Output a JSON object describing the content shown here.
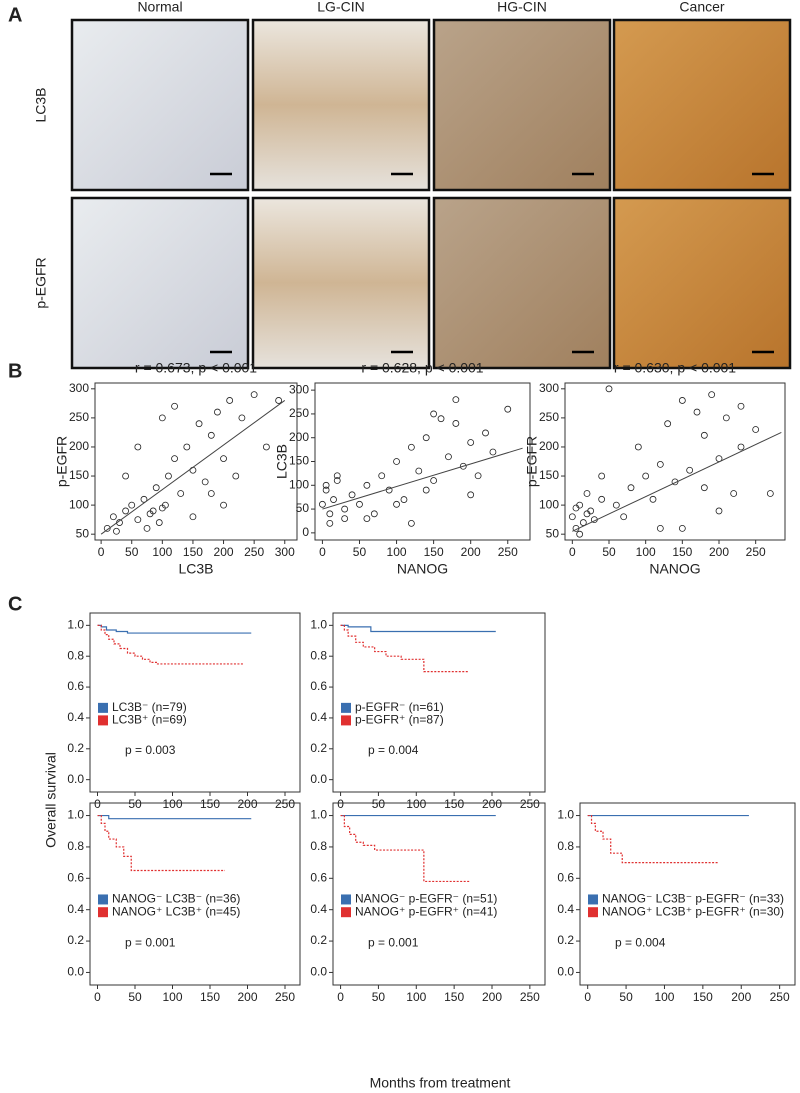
{
  "figure": {
    "panel_labels": [
      "A",
      "B",
      "C"
    ],
    "columns": [
      "Normal",
      "LG-CIN",
      "HG-CIN",
      "Cancer"
    ],
    "rows": [
      "LC3B",
      "p-EGFR"
    ],
    "km_ylabel": "Overall survival",
    "km_xlabel": "Months from treatment"
  },
  "chart_data": [
    {
      "type": "scatter",
      "title": "r = 0.673, p < 0.001",
      "x_label": "LC3B",
      "y_label": "p-EGFR",
      "x": [
        10,
        20,
        30,
        40,
        50,
        60,
        70,
        80,
        90,
        100,
        110,
        120,
        130,
        140,
        150,
        160,
        170,
        180,
        190,
        200,
        210,
        220,
        230,
        250,
        270,
        290,
        40,
        60,
        100,
        150,
        200,
        25,
        75,
        120,
        180,
        85,
        95,
        105
      ],
      "values": [
        60,
        80,
        70,
        90,
        100,
        75,
        110,
        85,
        130,
        95,
        150,
        180,
        120,
        200,
        160,
        240,
        140,
        220,
        260,
        180,
        280,
        150,
        250,
        290,
        200,
        280,
        150,
        200,
        250,
        80,
        100,
        55,
        60,
        270,
        120,
        90,
        70,
        100
      ],
      "fit": {
        "x": [
          0,
          300
        ],
        "values": [
          50,
          280
        ]
      },
      "xlim": [
        -10,
        320
      ],
      "ylim": [
        40,
        310
      ],
      "xticks": [
        0,
        50,
        100,
        150,
        200,
        250,
        300
      ],
      "yticks": [
        50,
        100,
        150,
        200,
        250,
        300
      ],
      "color": "#222"
    },
    {
      "type": "scatter",
      "title": "r = 0.628,  p < 0.001",
      "x_label": "NANOG",
      "y_label": "LC3B",
      "x": [
        0,
        5,
        10,
        15,
        20,
        30,
        40,
        50,
        60,
        70,
        80,
        90,
        100,
        110,
        120,
        130,
        140,
        150,
        160,
        170,
        180,
        190,
        200,
        210,
        220,
        230,
        250,
        10,
        20,
        60,
        100,
        140,
        180,
        200,
        150,
        120,
        5,
        30
      ],
      "values": [
        60,
        90,
        40,
        70,
        110,
        50,
        80,
        60,
        100,
        40,
        120,
        90,
        150,
        70,
        180,
        130,
        200,
        110,
        240,
        160,
        280,
        140,
        190,
        120,
        210,
        170,
        260,
        20,
        120,
        30,
        60,
        90,
        230,
        80,
        250,
        20,
        100,
        30
      ],
      "fit": {
        "x": [
          0,
          270
        ],
        "values": [
          50,
          178
        ]
      },
      "xlim": [
        -10,
        280
      ],
      "ylim": [
        -15,
        315
      ],
      "xticks": [
        0,
        50,
        100,
        150,
        200,
        250
      ],
      "yticks": [
        0,
        50,
        100,
        150,
        200,
        250,
        300
      ],
      "color": "#222"
    },
    {
      "type": "scatter",
      "title": "r = 0.630, p < 0.001",
      "x_label": "NANOG",
      "y_label": "p-EGFR",
      "x": [
        0,
        5,
        10,
        15,
        20,
        25,
        30,
        40,
        50,
        60,
        70,
        80,
        90,
        100,
        110,
        120,
        130,
        140,
        150,
        160,
        170,
        180,
        190,
        200,
        210,
        220,
        230,
        250,
        270,
        10,
        40,
        150,
        200,
        230,
        180,
        120,
        5,
        20
      ],
      "values": [
        80,
        60,
        100,
        70,
        120,
        90,
        75,
        110,
        300,
        100,
        80,
        130,
        200,
        150,
        110,
        170,
        240,
        140,
        280,
        160,
        260,
        220,
        290,
        180,
        250,
        120,
        200,
        230,
        120,
        50,
        150,
        60,
        90,
        270,
        130,
        60,
        95,
        85
      ],
      "fit": {
        "x": [
          0,
          285
        ],
        "values": [
          55,
          225
        ]
      },
      "xlim": [
        -10,
        290
      ],
      "ylim": [
        40,
        310
      ],
      "xticks": [
        0,
        50,
        100,
        150,
        200,
        250
      ],
      "yticks": [
        50,
        100,
        150,
        200,
        250,
        300
      ],
      "color": "#222"
    },
    {
      "type": "line",
      "annotation": "p = 0.003",
      "series": [
        {
          "name": "LC3B⁻ (n=79)",
          "color": "#3a6fb0",
          "dashed": false,
          "x": [
            0,
            5,
            5,
            12,
            12,
            25,
            25,
            40,
            40,
            205
          ],
          "values": [
            1,
            1,
            0.99,
            0.99,
            0.97,
            0.97,
            0.96,
            0.96,
            0.95,
            0.95
          ]
        },
        {
          "name": "LC3B⁺ (n=69)",
          "color": "#e03030",
          "dashed": true,
          "x": [
            0,
            5,
            5,
            10,
            10,
            15,
            15,
            22,
            22,
            30,
            30,
            40,
            40,
            50,
            50,
            60,
            60,
            70,
            70,
            80,
            80,
            195
          ],
          "values": [
            1,
            1,
            0.97,
            0.97,
            0.94,
            0.94,
            0.91,
            0.91,
            0.88,
            0.88,
            0.85,
            0.85,
            0.82,
            0.82,
            0.8,
            0.8,
            0.78,
            0.78,
            0.76,
            0.76,
            0.75,
            0.75
          ]
        }
      ],
      "xlim": [
        -10,
        270
      ],
      "ylim": [
        -0.08,
        1.08
      ],
      "xticks": [
        0,
        50,
        100,
        150,
        200,
        250
      ],
      "yticks": [
        {
          "value": 0,
          "label": "0.0"
        },
        {
          "value": 0.2,
          "label": "0.2"
        },
        {
          "value": 0.4,
          "label": "0.4"
        },
        {
          "value": 0.6,
          "label": "0.6"
        },
        {
          "value": 0.8,
          "label": "0.8"
        },
        {
          "value": 1,
          "label": "1.0"
        }
      ]
    },
    {
      "type": "line",
      "annotation": "p = 0.004",
      "series": [
        {
          "name": "p-EGFR⁻ (n=61)",
          "color": "#3a6fb0",
          "dashed": false,
          "x": [
            0,
            10,
            10,
            40,
            40,
            205
          ],
          "values": [
            1,
            1,
            0.99,
            0.99,
            0.96,
            0.96
          ]
        },
        {
          "name": "p-EGFR⁺ (n=87)",
          "color": "#e03030",
          "dashed": true,
          "x": [
            0,
            5,
            5,
            10,
            10,
            20,
            20,
            30,
            30,
            45,
            45,
            60,
            60,
            80,
            80,
            110,
            110,
            170
          ],
          "values": [
            1,
            1,
            0.97,
            0.97,
            0.93,
            0.93,
            0.89,
            0.89,
            0.86,
            0.86,
            0.83,
            0.83,
            0.8,
            0.8,
            0.78,
            0.78,
            0.7,
            0.7
          ]
        }
      ],
      "xlim": [
        -10,
        270
      ],
      "ylim": [
        -0.08,
        1.08
      ],
      "xticks": [
        0,
        50,
        100,
        150,
        200,
        250
      ],
      "yticks": [
        {
          "value": 0,
          "label": "0.0"
        },
        {
          "value": 0.2,
          "label": "0.2"
        },
        {
          "value": 0.4,
          "label": "0.4"
        },
        {
          "value": 0.6,
          "label": "0.6"
        },
        {
          "value": 0.8,
          "label": "0.8"
        },
        {
          "value": 1,
          "label": "1.0"
        }
      ]
    },
    {
      "type": "line",
      "annotation": "p = 0.001",
      "series": [
        {
          "name": "NANOG⁻ LC3B⁻ (n=36)",
          "color": "#3a6fb0",
          "dashed": false,
          "x": [
            0,
            15,
            15,
            205
          ],
          "values": [
            1,
            1,
            0.98,
            0.98
          ]
        },
        {
          "name": "NANOG⁺ LC3B⁺ (n=45)",
          "color": "#e03030",
          "dashed": true,
          "x": [
            0,
            5,
            5,
            10,
            10,
            15,
            15,
            25,
            25,
            35,
            35,
            45,
            45,
            170
          ],
          "values": [
            1,
            1,
            0.95,
            0.95,
            0.9,
            0.9,
            0.85,
            0.85,
            0.8,
            0.8,
            0.74,
            0.74,
            0.65,
            0.65
          ]
        }
      ],
      "xlim": [
        -10,
        270
      ],
      "ylim": [
        -0.08,
        1.08
      ],
      "xticks": [
        0,
        50,
        100,
        150,
        200,
        250
      ],
      "yticks": [
        {
          "value": 0,
          "label": "0.0"
        },
        {
          "value": 0.2,
          "label": "0.2"
        },
        {
          "value": 0.4,
          "label": "0.4"
        },
        {
          "value": 0.6,
          "label": "0.6"
        },
        {
          "value": 0.8,
          "label": "0.8"
        },
        {
          "value": 1,
          "label": "1.0"
        }
      ]
    },
    {
      "type": "line",
      "annotation": "p = 0.001",
      "series": [
        {
          "name": "NANOG⁻ p-EGFR⁻ (n=51)",
          "color": "#3a6fb0",
          "dashed": false,
          "x": [
            0,
            205
          ],
          "values": [
            1,
            1
          ]
        },
        {
          "name": "NANOG⁺ p-EGFR⁺ (n=41)",
          "color": "#e03030",
          "dashed": true,
          "x": [
            0,
            5,
            5,
            12,
            12,
            20,
            20,
            30,
            30,
            45,
            45,
            110,
            110,
            170
          ],
          "values": [
            1,
            1,
            0.93,
            0.93,
            0.88,
            0.88,
            0.83,
            0.83,
            0.81,
            0.81,
            0.78,
            0.78,
            0.58,
            0.58
          ]
        }
      ],
      "xlim": [
        -10,
        270
      ],
      "ylim": [
        -0.08,
        1.08
      ],
      "xticks": [
        0,
        50,
        100,
        150,
        200,
        250
      ],
      "yticks": [
        {
          "value": 0,
          "label": "0.0"
        },
        {
          "value": 0.2,
          "label": "0.2"
        },
        {
          "value": 0.4,
          "label": "0.4"
        },
        {
          "value": 0.6,
          "label": "0.6"
        },
        {
          "value": 0.8,
          "label": "0.8"
        },
        {
          "value": 1,
          "label": "1.0"
        }
      ]
    },
    {
      "type": "line",
      "annotation": "p = 0.004",
      "series": [
        {
          "name": "NANOG⁻ LC3B⁻ p-EGFR⁻ (n=33)",
          "color": "#3a6fb0",
          "dashed": false,
          "x": [
            0,
            210
          ],
          "values": [
            1,
            1
          ]
        },
        {
          "name": "NANOG⁺ LC3B⁺ p-EGFR⁺ (n=30)",
          "color": "#e03030",
          "dashed": true,
          "x": [
            0,
            5,
            5,
            10,
            10,
            20,
            20,
            30,
            30,
            45,
            45,
            170
          ],
          "values": [
            1,
            1,
            0.95,
            0.95,
            0.9,
            0.9,
            0.85,
            0.85,
            0.76,
            0.76,
            0.7,
            0.7
          ]
        }
      ],
      "xlim": [
        -10,
        270
      ],
      "ylim": [
        -0.08,
        1.08
      ],
      "xticks": [
        0,
        50,
        100,
        150,
        200,
        250
      ],
      "yticks": [
        {
          "value": 0,
          "label": "0.0"
        },
        {
          "value": 0.2,
          "label": "0.2"
        },
        {
          "value": 0.4,
          "label": "0.4"
        },
        {
          "value": 0.6,
          "label": "0.6"
        },
        {
          "value": 0.8,
          "label": "0.8"
        },
        {
          "value": 1,
          "label": "1.0"
        }
      ]
    }
  ]
}
